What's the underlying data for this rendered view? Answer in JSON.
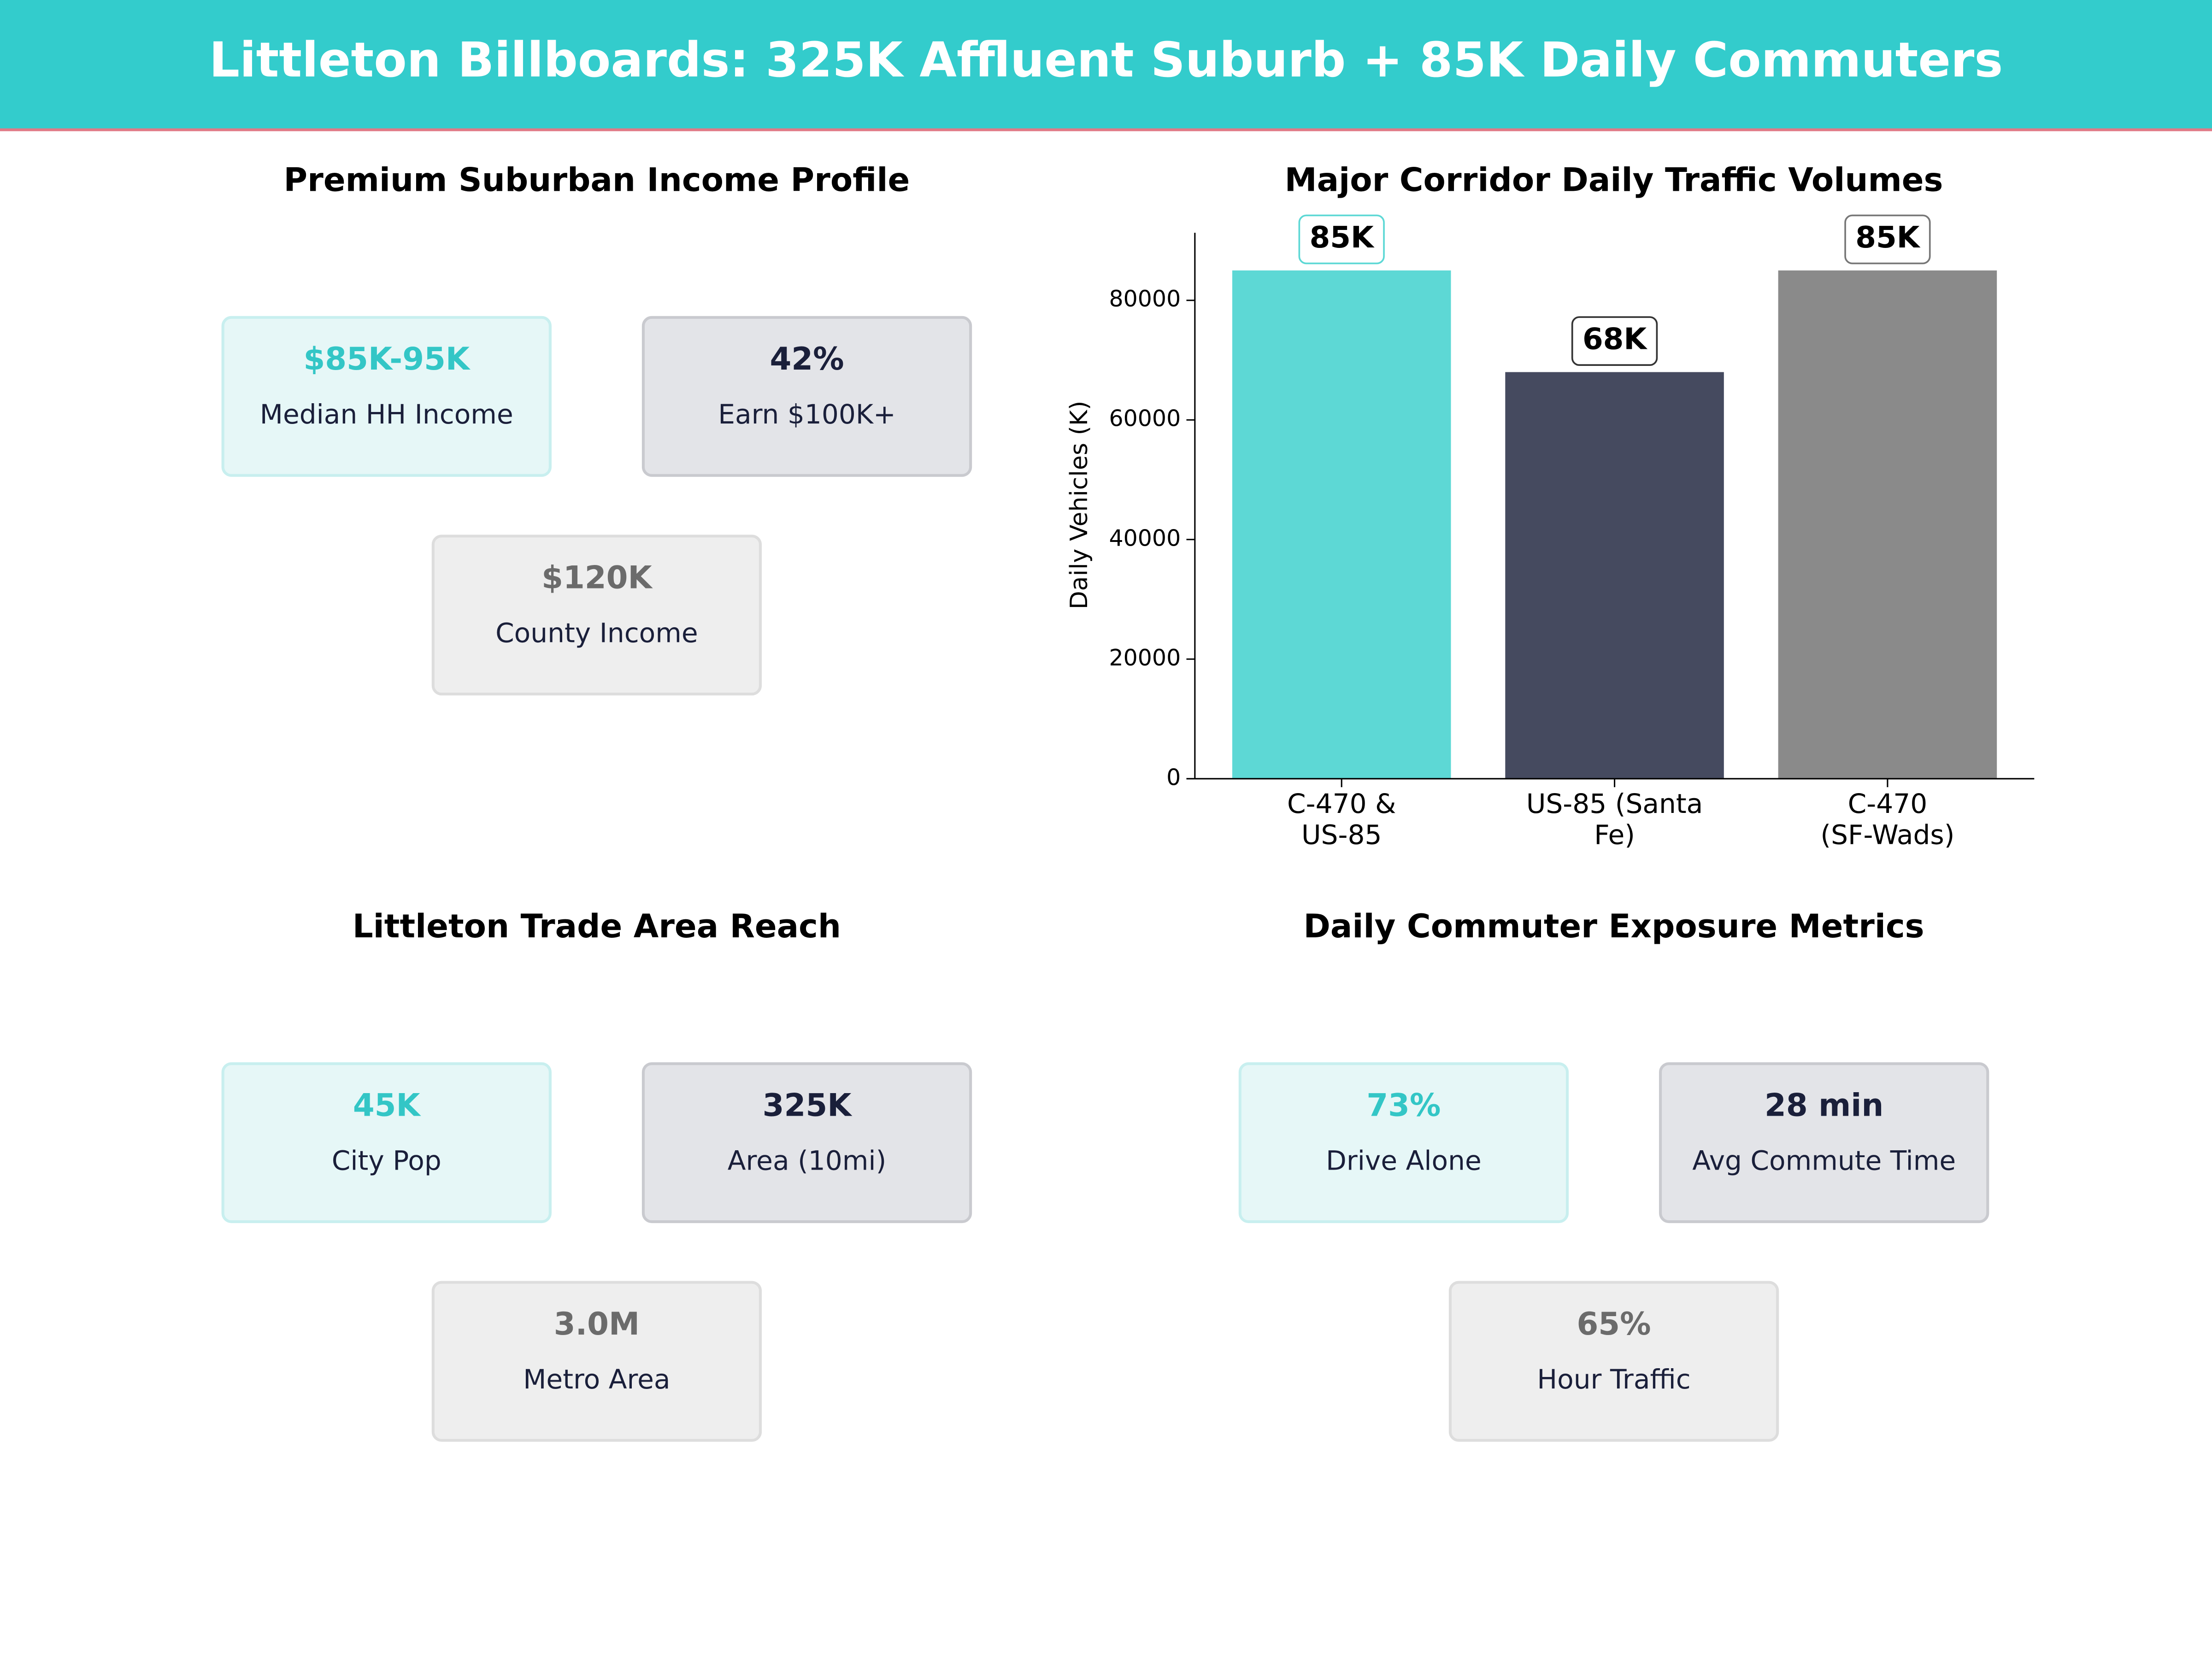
{
  "header": {
    "title": "Littleton Billboards: 325K Affluent Suburb + 85K Daily Commuters"
  },
  "panels": [
    {
      "title": "Premium Suburban Income Profile",
      "cards": [
        {
          "value": "$85K-95K",
          "label": "Median HH Income"
        },
        {
          "value": "42%",
          "label": "Earn $100K+"
        },
        {
          "value": "$120K",
          "label": "County Income"
        }
      ]
    },
    {
      "title": "Littleton Trade Area Reach",
      "cards": [
        {
          "value": "45K",
          "label": "City Pop"
        },
        {
          "value": "325K",
          "label": "Area (10mi)"
        },
        {
          "value": "3.0M",
          "label": "Metro Area"
        }
      ]
    },
    {
      "title": "Daily Commuter Exposure Metrics",
      "cards": [
        {
          "value": "73%",
          "label": "Drive Alone"
        },
        {
          "value": "28 min",
          "label": "Avg Commute Time"
        },
        {
          "value": "65%",
          "label": "Hour Traffic"
        }
      ]
    }
  ],
  "chart_data": {
    "type": "bar",
    "title": "Major Corridor Daily Traffic Volumes",
    "ylabel": "Daily Vehicles (K)",
    "categories": [
      "C-470 &\nUS-85",
      "US-85 (Santa\nFe)",
      "C-470\n(SF-Wads)"
    ],
    "values": [
      85000,
      68000,
      85000
    ],
    "value_labels": [
      "85K",
      "68K",
      "85K"
    ],
    "colors": [
      "#5dd8d5",
      "#454a5f",
      "#8a8a8a"
    ],
    "ylim": [
      0,
      91300
    ],
    "yticks": [
      0,
      20000,
      40000,
      60000,
      80000
    ]
  }
}
